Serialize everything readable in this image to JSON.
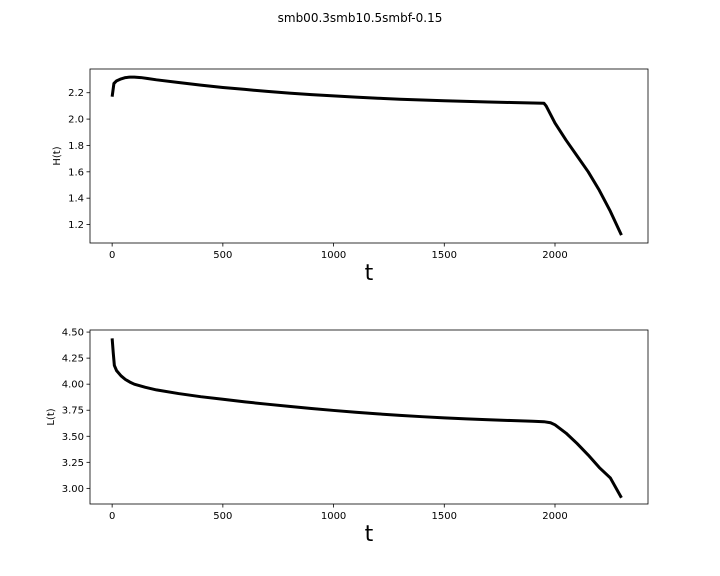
{
  "figure": {
    "suptitle": "smb00.3smb10.5smbf-0.15"
  },
  "chart_data": [
    {
      "type": "line",
      "xlabel": "t",
      "ylabel": "H(t)",
      "xlim": [
        -100,
        2420
      ],
      "ylim": [
        1.06,
        2.38
      ],
      "xticks": [
        0,
        500,
        1000,
        1500,
        2000
      ],
      "yticks": [
        1.2,
        1.4,
        1.6,
        1.8,
        2.0,
        2.2
      ],
      "ytick_labels": [
        "1.2",
        "1.4",
        "1.6",
        "1.8",
        "2.0",
        "2.2"
      ],
      "grid": false,
      "series": [
        {
          "color": "#000000",
          "x": [
            0,
            8,
            20,
            40,
            60,
            80,
            100,
            130,
            160,
            200,
            300,
            400,
            500,
            600,
            700,
            800,
            900,
            1000,
            1100,
            1200,
            1300,
            1400,
            1500,
            1600,
            1700,
            1800,
            1900,
            1950,
            1960,
            2000,
            2050,
            2100,
            2150,
            2200,
            2250,
            2300
          ],
          "y": [
            2.17,
            2.27,
            2.29,
            2.305,
            2.315,
            2.318,
            2.318,
            2.315,
            2.308,
            2.298,
            2.278,
            2.258,
            2.24,
            2.225,
            2.21,
            2.197,
            2.186,
            2.176,
            2.167,
            2.158,
            2.151,
            2.145,
            2.139,
            2.134,
            2.13,
            2.126,
            2.122,
            2.12,
            2.1,
            1.97,
            1.84,
            1.72,
            1.6,
            1.46,
            1.3,
            1.12
          ]
        }
      ]
    },
    {
      "type": "line",
      "xlabel": "t",
      "ylabel": "L(t)",
      "xlim": [
        -100,
        2420
      ],
      "ylim": [
        2.85,
        4.52
      ],
      "xticks": [
        0,
        500,
        1000,
        1500,
        2000
      ],
      "yticks": [
        3.0,
        3.25,
        3.5,
        3.75,
        4.0,
        4.25,
        4.5
      ],
      "ytick_labels": [
        "3.00",
        "3.25",
        "3.50",
        "3.75",
        "4.00",
        "4.25",
        "4.50"
      ],
      "grid": false,
      "series": [
        {
          "color": "#000000",
          "x": [
            0,
            5,
            10,
            20,
            40,
            60,
            80,
            100,
            150,
            200,
            300,
            400,
            500,
            600,
            700,
            800,
            900,
            1000,
            1100,
            1200,
            1300,
            1400,
            1500,
            1600,
            1700,
            1800,
            1900,
            1950,
            1980,
            2000,
            2050,
            2100,
            2150,
            2200,
            2250,
            2300
          ],
          "y": [
            4.44,
            4.3,
            4.18,
            4.13,
            4.08,
            4.045,
            4.02,
            4.0,
            3.97,
            3.945,
            3.91,
            3.88,
            3.855,
            3.83,
            3.808,
            3.787,
            3.767,
            3.748,
            3.731,
            3.715,
            3.701,
            3.688,
            3.677,
            3.667,
            3.659,
            3.651,
            3.644,
            3.64,
            3.63,
            3.61,
            3.53,
            3.43,
            3.32,
            3.2,
            3.1,
            2.91
          ]
        }
      ]
    }
  ]
}
